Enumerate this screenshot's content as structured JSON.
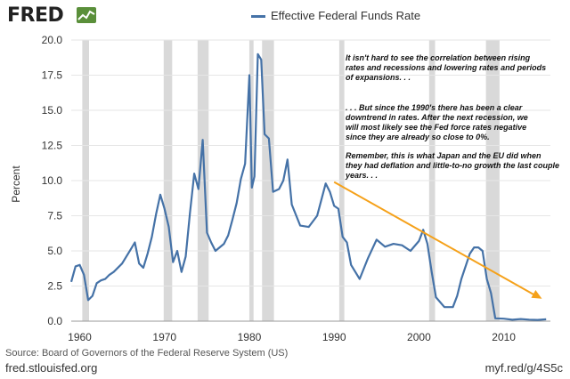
{
  "header": {
    "logo_text": "FRED",
    "legend_label": "Effective Federal Funds Rate"
  },
  "footer": {
    "source": "Source: Board of Governors of the Federal Reserve System (US)",
    "site": "fred.stlouisfed.org",
    "link": "myf.red/g/4S5c"
  },
  "colors": {
    "series": "#4572a7",
    "recession": "#d9d9d9",
    "trend_arrow": "#f5a11a",
    "grid": "#e6e6e6"
  },
  "annotation": {
    "paragraphs": [
      [
        "It isn't hard to see the correlation between rising",
        "rates and recessions and lowering rates and periods",
        "of expansions. . ."
      ],
      [
        ". . . But since the 1990's there has been a clear",
        "downtrend in rates. After the next recession, we",
        "will most likely see the Fed force rates negative",
        "since they are already so close to 0%."
      ],
      [
        "Remember, this is what Japan and the EU did when",
        "they had deflation and little-to-no growth the last couple",
        "years. . ."
      ]
    ]
  },
  "chart_data": {
    "type": "line",
    "title": "",
    "ylabel": "Percent",
    "xlabel": "",
    "xlim": [
      1959.0,
      2015.5
    ],
    "ylim": [
      0,
      20
    ],
    "xticks": [
      1960,
      1970,
      1980,
      1990,
      2000,
      2010
    ],
    "yticks": [
      0.0,
      2.5,
      5.0,
      7.5,
      10.0,
      12.5,
      15.0,
      17.5,
      20.0
    ],
    "ytick_labels": [
      "0.0",
      "2.5",
      "5.0",
      "7.5",
      "10.0",
      "12.5",
      "15.0",
      "17.5",
      "20.0"
    ],
    "grid": true,
    "legend": "top",
    "recessions": [
      [
        1960.3,
        1961.1
      ],
      [
        1969.9,
        1970.9
      ],
      [
        1973.9,
        1975.2
      ],
      [
        1980.0,
        1980.5
      ],
      [
        1981.5,
        1982.9
      ],
      [
        1990.6,
        1991.2
      ],
      [
        2001.2,
        2001.9
      ],
      [
        2007.9,
        2009.5
      ]
    ],
    "series": [
      {
        "name": "Effective Federal Funds Rate",
        "x": [
          1959.0,
          1959.5,
          1960.0,
          1960.5,
          1961.0,
          1961.5,
          1962.0,
          1962.5,
          1963.0,
          1963.5,
          1964.0,
          1965.0,
          1966.0,
          1966.5,
          1967.0,
          1967.5,
          1968.0,
          1968.5,
          1969.0,
          1969.5,
          1970.0,
          1970.5,
          1971.0,
          1971.5,
          1972.0,
          1972.5,
          1973.0,
          1973.5,
          1974.0,
          1974.5,
          1975.0,
          1975.5,
          1976.0,
          1977.0,
          1977.5,
          1978.0,
          1978.5,
          1979.0,
          1979.5,
          1980.0,
          1980.3,
          1980.6,
          1981.0,
          1981.4,
          1981.8,
          1982.3,
          1982.8,
          1983.5,
          1984.0,
          1984.5,
          1985.0,
          1986.0,
          1987.0,
          1988.0,
          1989.0,
          1989.5,
          1990.0,
          1990.5,
          1991.0,
          1991.5,
          1992.0,
          1993.0,
          1994.0,
          1995.0,
          1996.0,
          1997.0,
          1998.0,
          1999.0,
          2000.0,
          2000.5,
          2001.0,
          2001.5,
          2002.0,
          2003.0,
          2004.0,
          2004.5,
          2005.0,
          2006.0,
          2006.5,
          2007.0,
          2007.5,
          2008.0,
          2008.5,
          2009.0,
          2010.0,
          2011.0,
          2012.0,
          2013.0,
          2014.0,
          2015.0
        ],
        "values": [
          2.8,
          3.9,
          4.0,
          3.3,
          1.5,
          1.8,
          2.7,
          2.9,
          3.0,
          3.3,
          3.5,
          4.1,
          5.1,
          5.6,
          4.1,
          3.8,
          4.8,
          6.0,
          7.6,
          9.0,
          8.0,
          6.7,
          4.2,
          5.0,
          3.5,
          4.6,
          7.7,
          10.5,
          9.4,
          12.9,
          6.3,
          5.6,
          5.0,
          5.5,
          6.1,
          7.2,
          8.4,
          10.1,
          11.2,
          17.5,
          9.5,
          10.3,
          19.0,
          18.6,
          13.3,
          13.0,
          9.2,
          9.4,
          10.0,
          11.5,
          8.3,
          6.8,
          6.7,
          7.5,
          9.8,
          9.2,
          8.2,
          8.0,
          6.0,
          5.6,
          4.0,
          3.0,
          4.5,
          5.8,
          5.3,
          5.5,
          5.4,
          5.0,
          5.7,
          6.5,
          5.5,
          3.5,
          1.7,
          1.0,
          1.0,
          1.8,
          3.0,
          4.8,
          5.25,
          5.25,
          5.0,
          3.0,
          2.0,
          0.2,
          0.18,
          0.1,
          0.15,
          0.11,
          0.09,
          0.13
        ]
      }
    ],
    "trend_arrow": {
      "from": [
        1990.0,
        9.9
      ],
      "to": [
        2014.5,
        1.6
      ]
    }
  }
}
